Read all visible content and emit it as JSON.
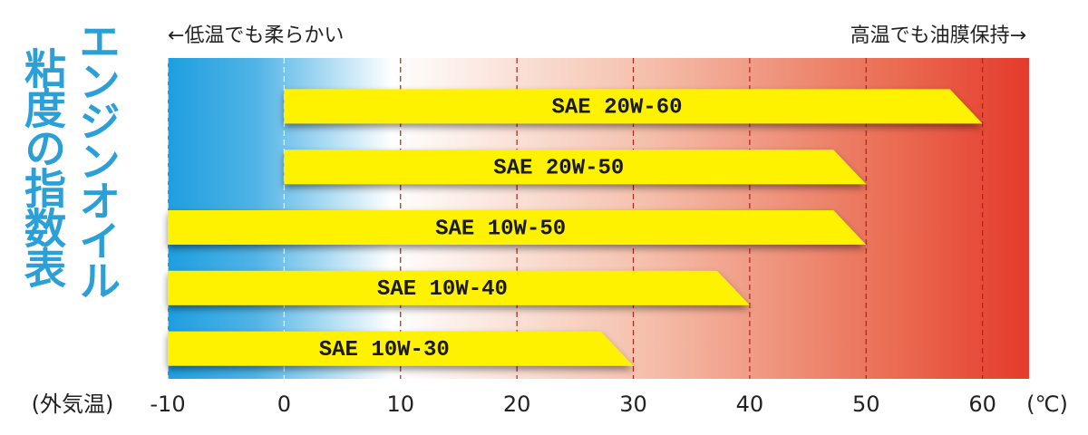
{
  "chart_data": {
    "type": "range-bar",
    "title_lines": [
      "エンジンオイル",
      "粘度の指数表"
    ],
    "left_note": "←低温でも柔らかい",
    "right_note": "高温でも油膜保持→",
    "x_label": "(外気温)",
    "x_unit": "(℃)",
    "categories": [
      "SAE 20W-60",
      "SAE 20W-50",
      "SAE 10W-50",
      "SAE 10W-40",
      "SAE 10W-30"
    ],
    "low": [
      0,
      0,
      -10,
      -10,
      -10
    ],
    "high": [
      60,
      50,
      50,
      40,
      30
    ],
    "color": "#fff200",
    "xlim": [
      -10,
      64
    ],
    "xticks": [
      -10,
      0,
      10,
      20,
      30,
      40,
      50,
      60
    ],
    "grid": true
  }
}
